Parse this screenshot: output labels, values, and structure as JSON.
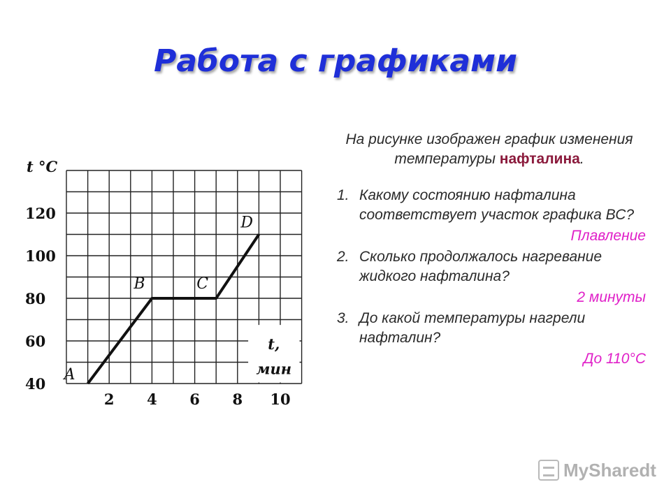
{
  "slide": {
    "title": "Работа с графиками"
  },
  "text": {
    "intro_prefix": "На рисунке изображен график изменения температуры",
    "intro_substance": "нафталина",
    "intro_suffix": ".",
    "questions": [
      {
        "number": "1.",
        "text": "Какому состоянию нафталина соответствует участок графика ВС?",
        "answer": "Плавление"
      },
      {
        "number": "2.",
        "text": "Сколько продолжалось нагревание жидкого нафталина?",
        "answer": "2 минуты"
      },
      {
        "number": "3.",
        "text": "До какой температуры нагрели нафталин?",
        "answer": "До 110°С"
      }
    ]
  },
  "logo": {
    "text": "MySharedt",
    "icon": "presentation-icon"
  },
  "chart_data": {
    "type": "line",
    "ylabel": "t °C",
    "xlabel_line1": "t,",
    "xlabel_line2": "мин",
    "xlim": [
      0,
      11
    ],
    "ylim": [
      40,
      130
    ],
    "grid": true,
    "x_ticks": [
      2,
      4,
      6,
      8,
      10
    ],
    "y_ticks": [
      40,
      60,
      80,
      100,
      120
    ],
    "series": [
      {
        "points": [
          {
            "label": "A",
            "x": 1,
            "y": 40
          },
          {
            "label": "B",
            "x": 4,
            "y": 80
          },
          {
            "label": "C",
            "x": 7,
            "y": 80
          },
          {
            "label": "D",
            "x": 9,
            "y": 110
          }
        ]
      }
    ]
  }
}
